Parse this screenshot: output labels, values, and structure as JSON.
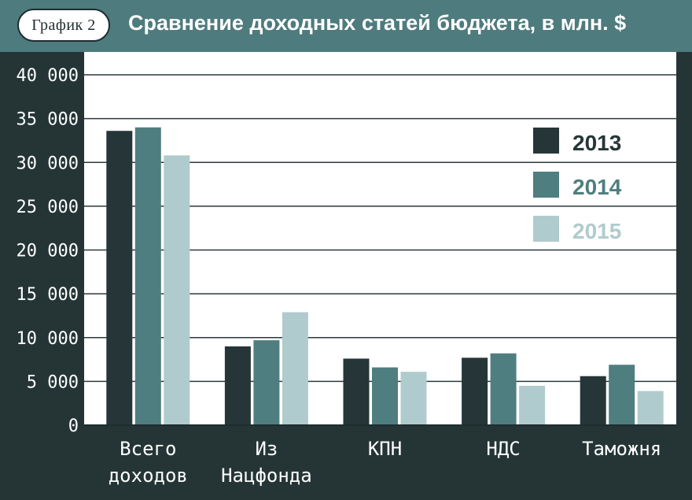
{
  "header": {
    "badge": "График 2",
    "title": "Сравнение доходных статей бюджета, в млн. $"
  },
  "colors": {
    "frame": "#253536",
    "header": "#4e7b7d",
    "plot": "#ffffff",
    "series_2013": "#263638",
    "series_2014": "#4f7e80",
    "series_2015": "#b0cbcd"
  },
  "chart_data": {
    "type": "bar",
    "title": "Сравнение доходных статей бюджета, в млн. $",
    "xlabel": "",
    "ylabel": "",
    "ylim": [
      0,
      40000
    ],
    "yticks": [
      0,
      5000,
      10000,
      15000,
      20000,
      25000,
      30000,
      35000,
      40000
    ],
    "ytick_labels": [
      "0",
      "5 000",
      "10 000",
      "15 000",
      "20 000",
      "25 000",
      "30 000",
      "35 000",
      "40 000"
    ],
    "grid": true,
    "legend_position": "top-right",
    "categories": [
      [
        "Всего",
        "доходов"
      ],
      [
        "Из",
        "Нацфонда"
      ],
      [
        "КПН"
      ],
      [
        "НДС"
      ],
      [
        "Таможня"
      ]
    ],
    "series": [
      {
        "name": "2013",
        "color": "#263638",
        "values": [
          33600,
          9000,
          7600,
          7700,
          5600
        ]
      },
      {
        "name": "2014",
        "color": "#4f7e80",
        "values": [
          34000,
          9700,
          6600,
          8200,
          6900
        ]
      },
      {
        "name": "2015",
        "color": "#b0cbcd",
        "values": [
          30800,
          12900,
          6100,
          4500,
          3900
        ]
      }
    ]
  }
}
